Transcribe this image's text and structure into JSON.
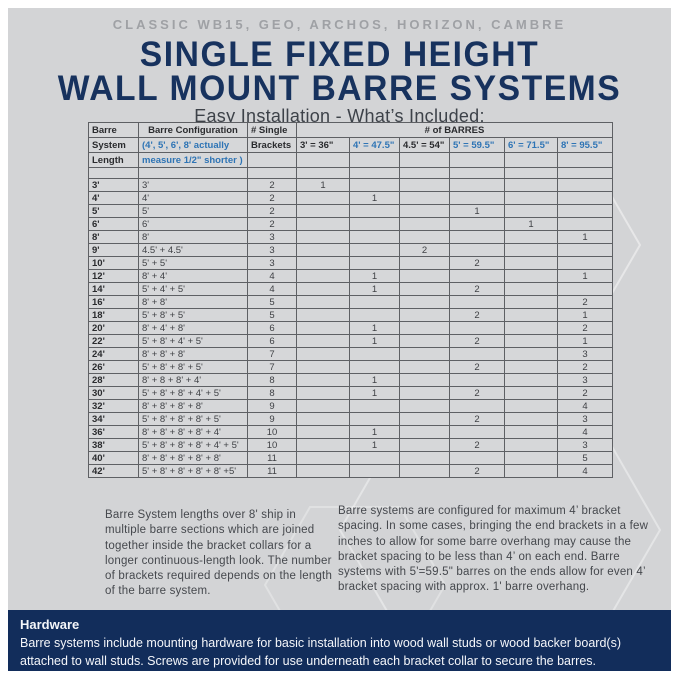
{
  "header": {
    "series_line": "CLASSIC WB15, GEO, ARCHOS, HORIZON, CAMBRE",
    "title_line1": "SINGLE FIXED HEIGHT",
    "title_line2": "WALL MOUNT BARRE SYSTEMS",
    "subtitle": "Easy Installation - What’s Included:"
  },
  "table": {
    "header": {
      "col1_row1": "Barre",
      "col1_row2": "System",
      "col1_row3": "Length",
      "config_title": "Barre Configuration",
      "config_note1": "(4', 5', 6', 8' actually",
      "config_note2": "measure 1/2\" shorter )",
      "brackets_row1": "# Single",
      "brackets_row2": "Brackets",
      "barres_title": "# of BARRES",
      "size_cols": [
        {
          "label": "3' = 36\"",
          "blue": false
        },
        {
          "label": "4' = 47.5\"",
          "blue": true
        },
        {
          "label": "4.5' = 54\"",
          "blue": false
        },
        {
          "label": "5' = 59.5\"",
          "blue": true
        },
        {
          "label": "6' = 71.5\"",
          "blue": true
        },
        {
          "label": "8' = 95.5\"",
          "blue": true
        }
      ]
    },
    "rows": [
      {
        "length": "3'",
        "config": "3'",
        "brackets": "2",
        "counts": [
          "1",
          "",
          "",
          "",
          "",
          ""
        ]
      },
      {
        "length": "4'",
        "config": "4'",
        "brackets": "2",
        "counts": [
          "",
          "1",
          "",
          "",
          "",
          ""
        ]
      },
      {
        "length": "5'",
        "config": "5'",
        "brackets": "2",
        "counts": [
          "",
          "",
          "",
          "1",
          "",
          ""
        ]
      },
      {
        "length": "6'",
        "config": "6'",
        "brackets": "2",
        "counts": [
          "",
          "",
          "",
          "",
          "1",
          ""
        ]
      },
      {
        "length": "8'",
        "config": "8'",
        "brackets": "3",
        "counts": [
          "",
          "",
          "",
          "",
          "",
          "1"
        ]
      },
      {
        "length": "9'",
        "config": "4.5' + 4.5'",
        "brackets": "3",
        "counts": [
          "",
          "",
          "2",
          "",
          "",
          ""
        ]
      },
      {
        "length": "10'",
        "config": "5' + 5'",
        "brackets": "3",
        "counts": [
          "",
          "",
          "",
          "2",
          "",
          ""
        ]
      },
      {
        "length": "12'",
        "config": "8' + 4'",
        "brackets": "4",
        "counts": [
          "",
          "1",
          "",
          "",
          "",
          "1"
        ]
      },
      {
        "length": "14'",
        "config": "5' + 4' + 5'",
        "brackets": "4",
        "counts": [
          "",
          "1",
          "",
          "2",
          "",
          ""
        ]
      },
      {
        "length": "16'",
        "config": "8' + 8'",
        "brackets": "5",
        "counts": [
          "",
          "",
          "",
          "",
          "",
          "2"
        ]
      },
      {
        "length": "18'",
        "config": "5' + 8' + 5'",
        "brackets": "5",
        "counts": [
          "",
          "",
          "",
          "2",
          "",
          "1"
        ]
      },
      {
        "length": "20'",
        "config": "8' + 4' + 8'",
        "brackets": "6",
        "counts": [
          "",
          "1",
          "",
          "",
          "",
          "2"
        ]
      },
      {
        "length": "22'",
        "config": "5' + 8' + 4' + 5'",
        "brackets": "6",
        "counts": [
          "",
          "1",
          "",
          "2",
          "",
          "1"
        ]
      },
      {
        "length": "24'",
        "config": "8' + 8' + 8'",
        "brackets": "7",
        "counts": [
          "",
          "",
          "",
          "",
          "",
          "3"
        ]
      },
      {
        "length": "26'",
        "config": "5' + 8' + 8' + 5'",
        "brackets": "7",
        "counts": [
          "",
          "",
          "",
          "2",
          "",
          "2"
        ]
      },
      {
        "length": "28'",
        "config": "8' + 8 + 8' + 4'",
        "brackets": "8",
        "counts": [
          "",
          "1",
          "",
          "",
          "",
          "3"
        ]
      },
      {
        "length": "30'",
        "config": "5' + 8' + 8' + 4' + 5'",
        "brackets": "8",
        "counts": [
          "",
          "1",
          "",
          "2",
          "",
          "2"
        ]
      },
      {
        "length": "32'",
        "config": "8' + 8' + 8' + 8'",
        "brackets": "9",
        "counts": [
          "",
          "",
          "",
          "",
          "",
          "4"
        ]
      },
      {
        "length": "34'",
        "config": "5' + 8' + 8' + 8' + 5'",
        "brackets": "9",
        "counts": [
          "",
          "",
          "",
          "2",
          "",
          "3"
        ]
      },
      {
        "length": "36'",
        "config": "8' + 8' + 8' + 8' + 4'",
        "brackets": "10",
        "counts": [
          "",
          "1",
          "",
          "",
          "",
          "4"
        ]
      },
      {
        "length": "38'",
        "config": "5' + 8' + 8' + 8' + 4' + 5'",
        "brackets": "10",
        "counts": [
          "",
          "1",
          "",
          "2",
          "",
          "3"
        ]
      },
      {
        "length": "40'",
        "config": "8' + 8' + 8' + 8' + 8'",
        "brackets": "11",
        "counts": [
          "",
          "",
          "",
          "",
          "",
          "5"
        ]
      },
      {
        "length": "42'",
        "config": "5' + 8' + 8' + 8' + 8' +5'",
        "brackets": "11",
        "counts": [
          "",
          "",
          "",
          "2",
          "",
          "4"
        ]
      }
    ]
  },
  "notes": {
    "left": "Barre System lengths over 8' ship in multiple barre sections which are joined together inside the bracket collars for a longer continuous-length look. The number of brackets required depends on the length of the barre system.",
    "right": "Barre systems are configured for maximum 4’ bracket spacing.  In some cases, bringing the end brackets in a few inches to allow for some barre overhang may cause the bracket spacing to be less than 4’ on each end.  Barre systems with 5'=59.5\" barres on the ends allow for even 4’ bracket spacing with approx. 1' barre overhang."
  },
  "footer": {
    "title": "Hardware",
    "body": "Barre systems include mounting hardware for basic installation into wood wall studs or wood backer board(s) attached to wall studs. Screws are provided for use underneath each bracket collar to secure the barres."
  },
  "colors": {
    "background_gray": "#d3d4d6",
    "frame_white": "#ffffff",
    "navy_title": "#17325e",
    "navy_footer": "#122d5b",
    "series_gray": "#9fa1a5",
    "table_blue": "#2e74b5",
    "text_dark": "#3f4145"
  }
}
